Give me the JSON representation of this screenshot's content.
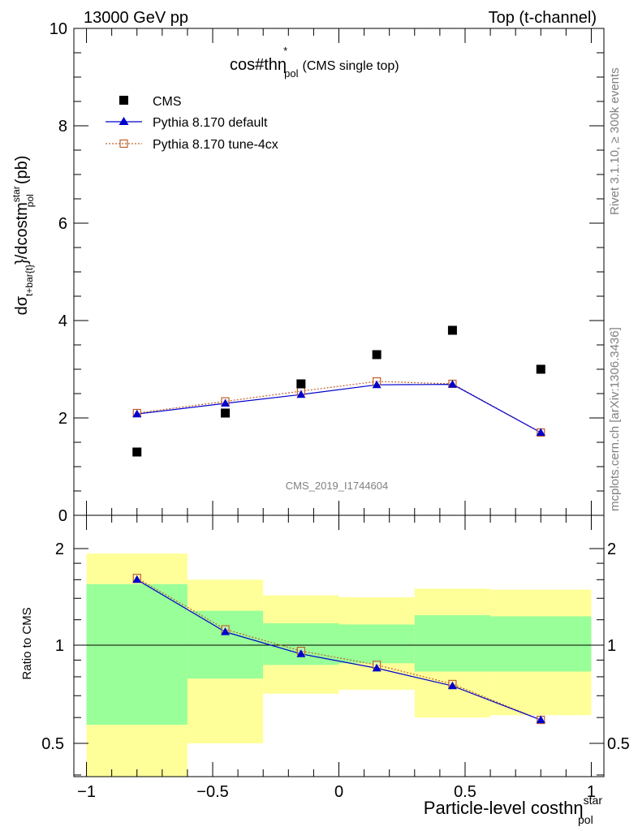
{
  "header": {
    "left": "13000 GeV pp",
    "right": "Top (t-channel)"
  },
  "plot_title": {
    "main": "cos#thη",
    "sup": "*",
    "sub": "pol",
    "suffix": "(CMS single top)"
  },
  "ylabel": {
    "dsigma": "dσ",
    "sub1": "t+bar{t}",
    "mid": "}/dcostm",
    "sup2": "star",
    "sub2": "pol",
    "unit": "(pb)"
  },
  "xlabel": {
    "main": "Particle-level costhη",
    "sup": "star",
    "sub": "pol"
  },
  "ratio_label": "Ratio to CMS",
  "watermark": "CMS_2019_I1744604",
  "side_text": {
    "rivet": "Rivet 3.1.10, ≥ 300k events",
    "mcplots": "mcplots.cern.ch [arXiv:1306.3436]"
  },
  "legend": {
    "cms": "CMS",
    "pythia_default": "Pythia 8.170 default",
    "pythia_4cx": "Pythia 8.170 tune-4cx"
  },
  "colors": {
    "data": "#000000",
    "default": "#0000cc",
    "tune4cx": "#c0602a",
    "band_inner": "#99ff99",
    "band_outer": "#ffff99"
  },
  "chart_data": [
    {
      "type": "scatter",
      "panel": "main",
      "x": [
        -0.8,
        -0.45,
        -0.15,
        0.15,
        0.45,
        0.8
      ],
      "xlim": [
        -1.05,
        1.05
      ],
      "ylim": [
        0,
        10
      ],
      "yticks": [
        "0",
        "2",
        "4",
        "6",
        "8",
        "10"
      ],
      "series": [
        {
          "name": "CMS",
          "values": [
            1.3,
            2.1,
            2.7,
            3.3,
            3.8,
            3.0
          ]
        },
        {
          "name": "Pythia 8.170 default",
          "values": [
            2.08,
            2.3,
            2.48,
            2.68,
            2.69,
            1.7
          ]
        },
        {
          "name": "Pythia 8.170 tune-4cx",
          "values": [
            2.1,
            2.34,
            2.55,
            2.75,
            2.7,
            1.7
          ]
        }
      ]
    },
    {
      "type": "line",
      "panel": "ratio",
      "ylabel": "Ratio to CMS",
      "x": [
        -0.8,
        -0.45,
        -0.15,
        0.15,
        0.45,
        0.8
      ],
      "xlim": [
        -1.05,
        1.05
      ],
      "ylim": [
        0.35,
        2.3
      ],
      "xticks": [
        "−1",
        "−0.5",
        "0",
        "0.5",
        "1"
      ],
      "yticks": [
        "0.5",
        "1",
        "2"
      ],
      "bins": [
        [
          -1.0,
          -0.6
        ],
        [
          -0.6,
          -0.3
        ],
        [
          -0.3,
          0.0
        ],
        [
          0.0,
          0.3
        ],
        [
          0.3,
          0.6
        ],
        [
          0.6,
          1.0
        ]
      ],
      "band_inner": [
        [
          0.57,
          1.55
        ],
        [
          0.79,
          1.28
        ],
        [
          0.87,
          1.17
        ],
        [
          0.88,
          1.16
        ],
        [
          0.83,
          1.24
        ],
        [
          0.83,
          1.23
        ]
      ],
      "band_outer": [
        [
          0.33,
          1.93
        ],
        [
          0.5,
          1.6
        ],
        [
          0.71,
          1.43
        ],
        [
          0.73,
          1.41
        ],
        [
          0.6,
          1.5
        ],
        [
          0.61,
          1.49
        ]
      ],
      "series": [
        {
          "name": "Pythia 8.170 default",
          "values": [
            1.6,
            1.1,
            0.94,
            0.85,
            0.75,
            0.59
          ]
        },
        {
          "name": "Pythia 8.170 tune-4cx",
          "values": [
            1.62,
            1.12,
            0.96,
            0.87,
            0.76,
            0.59
          ]
        }
      ]
    }
  ]
}
